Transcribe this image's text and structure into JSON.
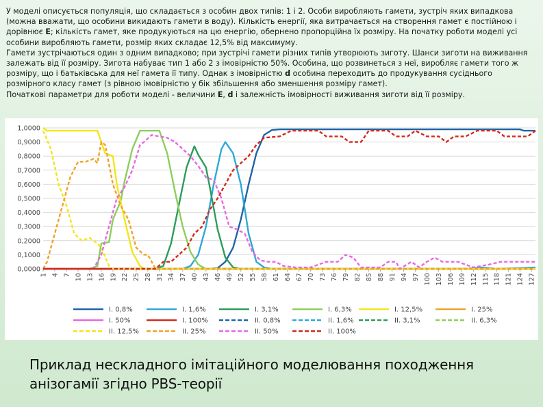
{
  "description": {
    "p1": [
      {
        "t": "У моделі описується популяція, що складається з особин двох типів: 1 і 2. Особи виробляють гамети, зустріч яких випадкова (можна вважати, що особини викидають гамети в воду). Кількість енергії, яка витрачається на створення гамет є постійною і дорівнює "
      },
      {
        "t": "E",
        "b": true
      },
      {
        "t": "; кількість гамет, яке продукуються на  цю енергію, обернено пропорційна їх розміру. На початку роботи моделі усі особини виробляють гамети, розмір яких складає 12,5% від максимуму."
      }
    ],
    "p2": [
      {
        "t": "Гамети зустрічаються один з одним випадково; при зустрічі гамети різних типів утворюють зиготу. Шанси зиготи на виживання залежать від її розміру. Зигота набуває тип 1 або 2 з імовірністю 50%. Особина, що розвинеться з неї, виробляє гамети того ж розміру, що і батьківська для неї гамета її типу. Однак з імовірністю "
      },
      {
        "t": "d",
        "b": true
      },
      {
        "t": " особина переходить до продукування сусіднього розмірного класу гамет (з рівною імовірністю у бік збільшення або зменшення розміру гамет)."
      }
    ],
    "p3": [
      {
        "t": "Початкові параметри для роботи моделі - величини "
      },
      {
        "t": "E",
        "b": true
      },
      {
        "t": ", "
      },
      {
        "t": "d",
        "b": true
      },
      {
        "t": " і залежність імовірності виживання зиготи від її розміру."
      }
    ]
  },
  "caption": "Приклад нескладного імітаційного моделювання походження анізогамії згідно PBS-теорії",
  "chart_data": {
    "type": "line",
    "ylim": [
      0,
      1
    ],
    "yticks": [
      "0,0000",
      "0,1000",
      "0,2000",
      "0,3000",
      "0,4000",
      "0,5000",
      "0,6000",
      "0,7000",
      "0,8000",
      "0,9000",
      "1,0000"
    ],
    "xticks": [
      1,
      4,
      7,
      10,
      13,
      16,
      19,
      22,
      25,
      28,
      31,
      34,
      37,
      40,
      43,
      46,
      49,
      52,
      55,
      58,
      61,
      64,
      67,
      70,
      73,
      76,
      79,
      82,
      85,
      88,
      91,
      94,
      97,
      100,
      103,
      106,
      109,
      112,
      115,
      118,
      121,
      124,
      127
    ],
    "xrange": [
      1,
      128
    ],
    "grid": true,
    "legend_position": "bottom",
    "series": [
      {
        "name": "I. 0,8%",
        "color": "#1f63a8",
        "dash": false,
        "points": [
          [
            1,
            0
          ],
          [
            44,
            0
          ],
          [
            46,
            0.005
          ],
          [
            48,
            0.05
          ],
          [
            50,
            0.15
          ],
          [
            52,
            0.35
          ],
          [
            54,
            0.6
          ],
          [
            56,
            0.82
          ],
          [
            58,
            0.95
          ],
          [
            60,
            0.985
          ],
          [
            62,
            0.99
          ],
          [
            124,
            0.99
          ],
          [
            125,
            0.98
          ],
          [
            128,
            0.98
          ]
        ]
      },
      {
        "name": "I. 1,6%",
        "color": "#2ea8d8",
        "dash": false,
        "points": [
          [
            1,
            0
          ],
          [
            37,
            0
          ],
          [
            39,
            0.02
          ],
          [
            41,
            0.1
          ],
          [
            43,
            0.3
          ],
          [
            45,
            0.6
          ],
          [
            47,
            0.85
          ],
          [
            48,
            0.9
          ],
          [
            50,
            0.82
          ],
          [
            52,
            0.6
          ],
          [
            54,
            0.25
          ],
          [
            56,
            0.05
          ],
          [
            58,
            0.01
          ],
          [
            60,
            0
          ],
          [
            110,
            0
          ],
          [
            114,
            0.01
          ],
          [
            118,
            0
          ],
          [
            124,
            0.005
          ],
          [
            128,
            0.01
          ]
        ]
      },
      {
        "name": "I. 3,1%",
        "color": "#2a9d5a",
        "dash": false,
        "points": [
          [
            1,
            0
          ],
          [
            30,
            0
          ],
          [
            32,
            0.02
          ],
          [
            34,
            0.18
          ],
          [
            36,
            0.45
          ],
          [
            38,
            0.72
          ],
          [
            40,
            0.87
          ],
          [
            41,
            0.81
          ],
          [
            43,
            0.72
          ],
          [
            44,
            0.58
          ],
          [
            46,
            0.28
          ],
          [
            48,
            0.08
          ],
          [
            50,
            0.01
          ],
          [
            52,
            0
          ],
          [
            128,
            0
          ]
        ]
      },
      {
        "name": "I. 6,3%",
        "color": "#8ccf5a",
        "dash": false,
        "points": [
          [
            1,
            0
          ],
          [
            13,
            0
          ],
          [
            15,
            0.02
          ],
          [
            16,
            0.18
          ],
          [
            18,
            0.19
          ],
          [
            19,
            0.35
          ],
          [
            21,
            0.48
          ],
          [
            22,
            0.62
          ],
          [
            24,
            0.85
          ],
          [
            26,
            0.98
          ],
          [
            31,
            0.98
          ],
          [
            33,
            0.82
          ],
          [
            35,
            0.55
          ],
          [
            37,
            0.3
          ],
          [
            39,
            0.12
          ],
          [
            41,
            0.03
          ],
          [
            43,
            0
          ],
          [
            128,
            0
          ]
        ]
      },
      {
        "name": "I. 12,5%",
        "color": "#f2e61a",
        "dash": false,
        "points": [
          [
            1,
            1
          ],
          [
            2,
            0.98
          ],
          [
            15,
            0.98
          ],
          [
            16,
            0.9
          ],
          [
            17,
            0.82
          ],
          [
            19,
            0.8
          ],
          [
            20,
            0.6
          ],
          [
            22,
            0.35
          ],
          [
            24,
            0.12
          ],
          [
            26,
            0.02
          ],
          [
            27,
            0
          ],
          [
            128,
            0
          ]
        ]
      },
      {
        "name": "I. 25%",
        "color": "#f0a22a",
        "dash": false,
        "points": [
          [
            1,
            0
          ],
          [
            128,
            0
          ]
        ]
      },
      {
        "name": "I. 50%",
        "color": "#e868e0",
        "dash": false,
        "points": [
          [
            1,
            0
          ],
          [
            128,
            0
          ]
        ]
      },
      {
        "name": "I. 100%",
        "color": "#d42a1a",
        "dash": false,
        "points": [
          [
            1,
            0
          ],
          [
            128,
            0
          ]
        ]
      },
      {
        "name": "II. 0,8%",
        "color": "#1f63a8",
        "dash": true,
        "points": [
          [
            1,
            0
          ],
          [
            128,
            0
          ]
        ]
      },
      {
        "name": "II. 1,6%",
        "color": "#2ea8d8",
        "dash": true,
        "points": [
          [
            1,
            0
          ],
          [
            128,
            0
          ]
        ]
      },
      {
        "name": "II. 3,1%",
        "color": "#2a9d5a",
        "dash": true,
        "points": [
          [
            1,
            0
          ],
          [
            128,
            0
          ]
        ]
      },
      {
        "name": "II. 6,3%",
        "color": "#8ccf5a",
        "dash": true,
        "points": [
          [
            1,
            0
          ],
          [
            128,
            0
          ]
        ]
      },
      {
        "name": "II. 12,5%",
        "color": "#f2e61a",
        "dash": true,
        "points": [
          [
            1,
            0.98
          ],
          [
            3,
            0.85
          ],
          [
            5,
            0.6
          ],
          [
            7,
            0.45
          ],
          [
            9,
            0.25
          ],
          [
            11,
            0.2
          ],
          [
            13,
            0.22
          ],
          [
            15,
            0.18
          ],
          [
            16,
            0.15
          ],
          [
            18,
            0.02
          ],
          [
            19,
            0
          ],
          [
            128,
            0
          ]
        ]
      },
      {
        "name": "II. 25%",
        "color": "#f0a22a",
        "dash": true,
        "points": [
          [
            1,
            0
          ],
          [
            2,
            0.05
          ],
          [
            4,
            0.25
          ],
          [
            6,
            0.45
          ],
          [
            8,
            0.65
          ],
          [
            10,
            0.76
          ],
          [
            12,
            0.76
          ],
          [
            14,
            0.78
          ],
          [
            15,
            0.75
          ],
          [
            16,
            0.9
          ],
          [
            17,
            0.88
          ],
          [
            19,
            0.6
          ],
          [
            21,
            0.45
          ],
          [
            23,
            0.35
          ],
          [
            25,
            0.15
          ],
          [
            27,
            0.1
          ],
          [
            28,
            0.1
          ],
          [
            29,
            0.05
          ],
          [
            30,
            0
          ],
          [
            128,
            0
          ]
        ]
      },
      {
        "name": "II. 50%",
        "color": "#e868e0",
        "dash": true,
        "points": [
          [
            1,
            0
          ],
          [
            14,
            0
          ],
          [
            15,
            0.05
          ],
          [
            16,
            0.1
          ],
          [
            18,
            0.3
          ],
          [
            20,
            0.5
          ],
          [
            22,
            0.58
          ],
          [
            24,
            0.7
          ],
          [
            26,
            0.88
          ],
          [
            27,
            0.9
          ],
          [
            29,
            0.95
          ],
          [
            31,
            0.94
          ],
          [
            33,
            0.93
          ],
          [
            35,
            0.9
          ],
          [
            37,
            0.85
          ],
          [
            39,
            0.8
          ],
          [
            41,
            0.73
          ],
          [
            43,
            0.65
          ],
          [
            45,
            0.63
          ],
          [
            47,
            0.5
          ],
          [
            49,
            0.3
          ],
          [
            51,
            0.28
          ],
          [
            53,
            0.25
          ],
          [
            55,
            0.12
          ],
          [
            57,
            0.06
          ],
          [
            59,
            0.05
          ],
          [
            61,
            0.05
          ],
          [
            63,
            0.02
          ],
          [
            66,
            0.01
          ],
          [
            70,
            0.01
          ],
          [
            74,
            0.05
          ],
          [
            77,
            0.05
          ],
          [
            79,
            0.1
          ],
          [
            81,
            0.08
          ],
          [
            83,
            0.01
          ],
          [
            88,
            0.01
          ],
          [
            90,
            0.05
          ],
          [
            92,
            0.05
          ],
          [
            93,
            0
          ],
          [
            96,
            0.05
          ],
          [
            98,
            0.01
          ],
          [
            100,
            0.05
          ],
          [
            102,
            0.08
          ],
          [
            104,
            0.05
          ],
          [
            108,
            0.05
          ],
          [
            112,
            0.01
          ],
          [
            116,
            0.03
          ],
          [
            119,
            0.05
          ],
          [
            124,
            0.05
          ],
          [
            128,
            0.05
          ]
        ]
      },
      {
        "name": "II. 100%",
        "color": "#d42a1a",
        "dash": true,
        "points": [
          [
            1,
            0
          ],
          [
            30,
            0
          ],
          [
            32,
            0.05
          ],
          [
            34,
            0.05
          ],
          [
            36,
            0.1
          ],
          [
            38,
            0.15
          ],
          [
            40,
            0.25
          ],
          [
            42,
            0.3
          ],
          [
            44,
            0.42
          ],
          [
            46,
            0.5
          ],
          [
            48,
            0.6
          ],
          [
            50,
            0.7
          ],
          [
            52,
            0.75
          ],
          [
            54,
            0.8
          ],
          [
            56,
            0.88
          ],
          [
            58,
            0.93
          ],
          [
            62,
            0.94
          ],
          [
            65,
            0.98
          ],
          [
            72,
            0.98
          ],
          [
            74,
            0.94
          ],
          [
            78,
            0.94
          ],
          [
            80,
            0.9
          ],
          [
            83,
            0.9
          ],
          [
            85,
            0.98
          ],
          [
            90,
            0.98
          ],
          [
            92,
            0.94
          ],
          [
            95,
            0.94
          ],
          [
            97,
            0.98
          ],
          [
            100,
            0.94
          ],
          [
            103,
            0.94
          ],
          [
            105,
            0.9
          ],
          [
            107,
            0.94
          ],
          [
            110,
            0.94
          ],
          [
            113,
            0.98
          ],
          [
            118,
            0.98
          ],
          [
            120,
            0.94
          ],
          [
            126,
            0.94
          ],
          [
            128,
            0.98
          ]
        ]
      }
    ]
  }
}
